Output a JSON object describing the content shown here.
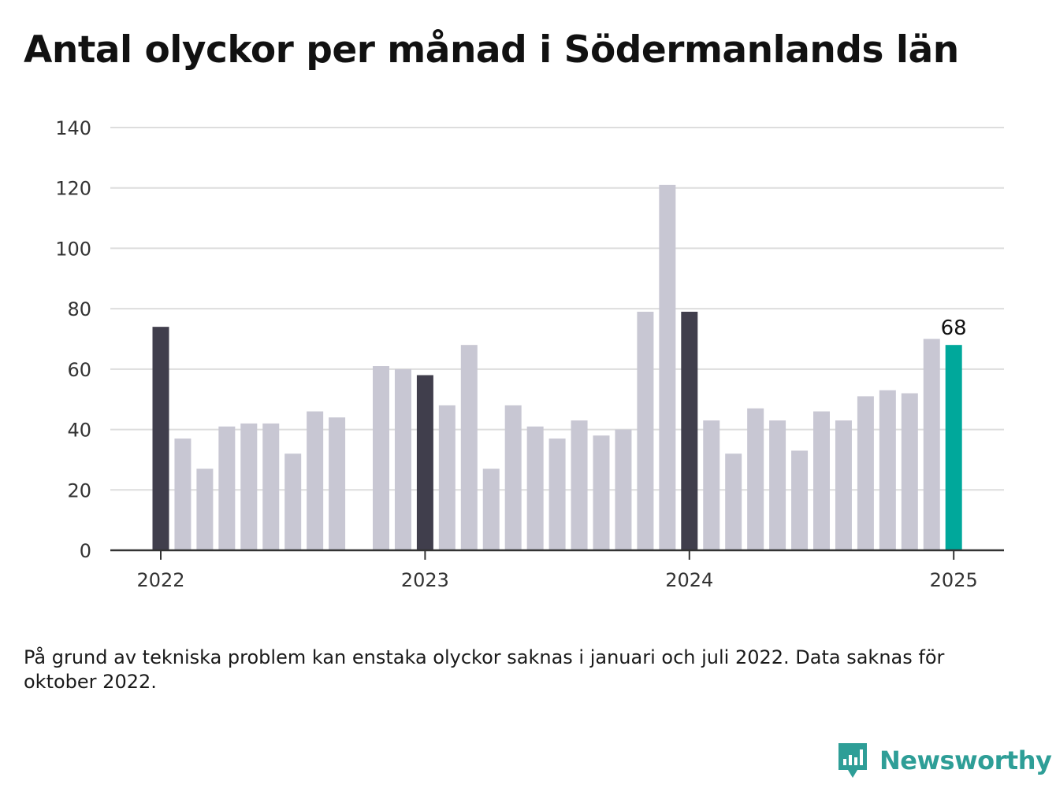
{
  "title": "Antal olyckor per månad i Södermanlands län",
  "note": "På grund av tekniska problem kan enstaka olyckor saknas i januari och juli 2022. Data saknas för oktober 2022.",
  "brand": {
    "name": "Newsworthy",
    "icon": "newsworthy-logo-icon",
    "color": "#2e9e97"
  },
  "colors": {
    "regular": "#c8c7d3",
    "january": "#403e4c",
    "latest": "#00a89b",
    "grid": "#dddddd",
    "axis": "#333333"
  },
  "chart_data": {
    "type": "bar",
    "title": "Antal olyckor per månad i Södermanlands län",
    "xlabel": "",
    "ylabel": "",
    "ylim": [
      0,
      140
    ],
    "yticks": [
      "0",
      "20",
      "40",
      "60",
      "80",
      "100",
      "120",
      "140"
    ],
    "xticks": [
      "2022",
      "2023",
      "2024",
      "2025"
    ],
    "grid": true,
    "categories": [
      "2022-01",
      "2022-02",
      "2022-03",
      "2022-04",
      "2022-05",
      "2022-06",
      "2022-07",
      "2022-08",
      "2022-09",
      "2022-10",
      "2022-11",
      "2022-12",
      "2023-01",
      "2023-02",
      "2023-03",
      "2023-04",
      "2023-05",
      "2023-06",
      "2023-07",
      "2023-08",
      "2023-09",
      "2023-10",
      "2023-11",
      "2023-12",
      "2024-01",
      "2024-02",
      "2024-03",
      "2024-04",
      "2024-05",
      "2024-06",
      "2024-07",
      "2024-08",
      "2024-09",
      "2024-10",
      "2024-11",
      "2024-12",
      "2025-01"
    ],
    "values": [
      74,
      37,
      27,
      41,
      42,
      42,
      32,
      46,
      44,
      null,
      61,
      60,
      58,
      48,
      68,
      27,
      48,
      41,
      37,
      43,
      38,
      40,
      79,
      121,
      79,
      43,
      32,
      47,
      43,
      33,
      46,
      43,
      51,
      53,
      52,
      70,
      68
    ],
    "annotations": [
      {
        "category": "2025-01",
        "text": "68"
      }
    ]
  }
}
